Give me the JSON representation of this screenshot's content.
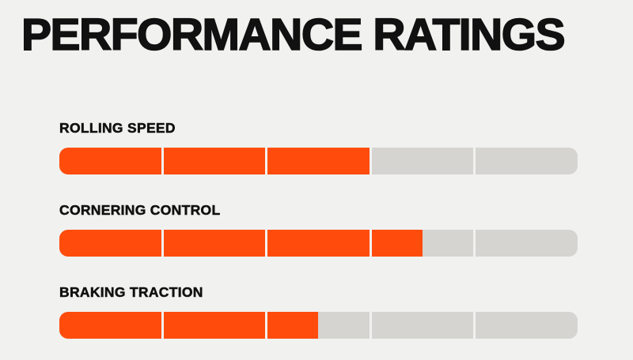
{
  "title": "PERFORMANCE RATINGS",
  "colors": {
    "background": "#f1f1ef",
    "text": "#111111",
    "fill": "#ff4c0c",
    "track": "#d5d4d1"
  },
  "chart_data": {
    "type": "bar",
    "title": "PERFORMANCE RATINGS",
    "orientation": "horizontal",
    "categories": [
      "ROLLING SPEED",
      "CORNERING CONTROL",
      "BRAKING TRACTION"
    ],
    "values": [
      3,
      3.5,
      2.5
    ],
    "value_max": 5,
    "segments_per_bar": 5,
    "legend": "none",
    "grid": "off",
    "fill_color": "#ff4c0c",
    "track_color": "#d5d4d1"
  }
}
